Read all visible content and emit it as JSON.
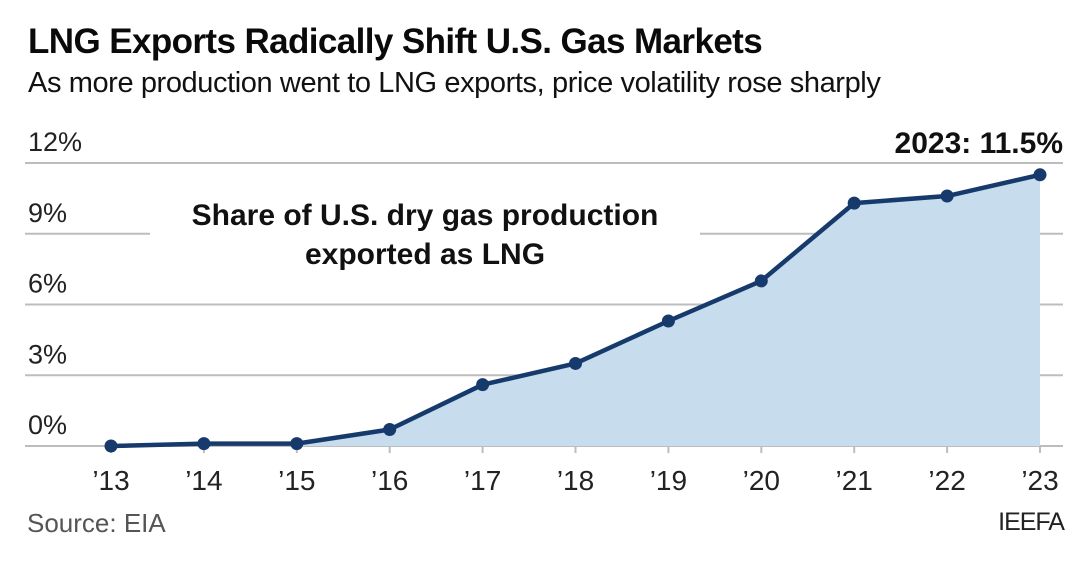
{
  "header": {
    "title": "LNG Exports Radically Shift U.S. Gas Markets",
    "subtitle": "As more production went to LNG exports, price volatility rose sharply"
  },
  "footer": {
    "source": "Source: EIA",
    "credit": "IEEFA"
  },
  "colors": {
    "line": "#163a6b",
    "area": "#c7dcec",
    "grid": "#bdbdbd"
  },
  "chart_data": {
    "type": "area",
    "title": "LNG Exports Radically Shift U.S. Gas Markets",
    "subtitle": "As more production went to LNG exports, price volatility rose sharply",
    "series_label_line1": "Share of U.S. dry gas production",
    "series_label_line2": "exported as LNG",
    "callout": "2023: 11.5%",
    "xlabel": "",
    "ylabel": "",
    "categories": [
      "’13",
      "’14",
      "’15",
      "’16",
      "’17",
      "’18",
      "’19",
      "’20",
      "’21",
      "’22",
      "’23"
    ],
    "series": [
      {
        "name": "Share of U.S. dry gas production exported as LNG",
        "values": [
          0.0,
          0.1,
          0.1,
          0.7,
          2.6,
          3.5,
          5.3,
          7.0,
          10.3,
          10.6,
          11.5
        ]
      }
    ],
    "ylim": [
      0,
      12
    ],
    "yticks": [
      0,
      3,
      6,
      9,
      12
    ],
    "ytick_labels": [
      "0%",
      "3%",
      "6%",
      "9%",
      "12%"
    ],
    "grid": true,
    "legend": "inline-annotation"
  }
}
